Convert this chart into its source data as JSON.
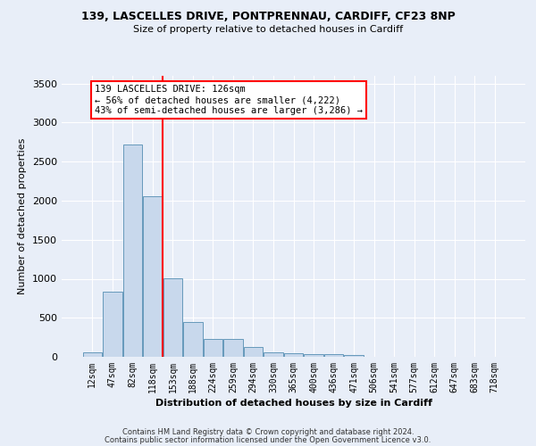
{
  "title1": "139, LASCELLES DRIVE, PONTPRENNAU, CARDIFF, CF23 8NP",
  "title2": "Size of property relative to detached houses in Cardiff",
  "xlabel": "Distribution of detached houses by size in Cardiff",
  "ylabel": "Number of detached properties",
  "footer1": "Contains HM Land Registry data © Crown copyright and database right 2024.",
  "footer2": "Contains public sector information licensed under the Open Government Licence v3.0.",
  "bar_labels": [
    "12sqm",
    "47sqm",
    "82sqm",
    "118sqm",
    "153sqm",
    "188sqm",
    "224sqm",
    "259sqm",
    "294sqm",
    "330sqm",
    "365sqm",
    "400sqm",
    "436sqm",
    "471sqm",
    "506sqm",
    "541sqm",
    "577sqm",
    "612sqm",
    "647sqm",
    "683sqm",
    "718sqm"
  ],
  "bar_values": [
    60,
    840,
    2720,
    2060,
    1010,
    450,
    230,
    225,
    130,
    60,
    50,
    30,
    30,
    20,
    0,
    0,
    0,
    0,
    0,
    0,
    0
  ],
  "bar_color": "#c8d8ec",
  "bar_edgecolor": "#6699bb",
  "vline_index": 3.5,
  "vline_color": "red",
  "annotation_title": "139 LASCELLES DRIVE: 126sqm",
  "annotation_line1": "← 56% of detached houses are smaller (4,222)",
  "annotation_line2": "43% of semi-detached houses are larger (3,286) →",
  "ann_box_edgecolor": "red",
  "ann_box_facecolor": "white",
  "ylim": [
    0,
    3600
  ],
  "yticks": [
    0,
    500,
    1000,
    1500,
    2000,
    2500,
    3000,
    3500
  ],
  "bg_color": "#e8eef8",
  "title1_fontsize": 9,
  "title2_fontsize": 8,
  "xlabel_fontsize": 8,
  "ylabel_fontsize": 8,
  "tick_fontsize": 7,
  "footer_fontsize": 6,
  "ann_fontsize": 7.5
}
